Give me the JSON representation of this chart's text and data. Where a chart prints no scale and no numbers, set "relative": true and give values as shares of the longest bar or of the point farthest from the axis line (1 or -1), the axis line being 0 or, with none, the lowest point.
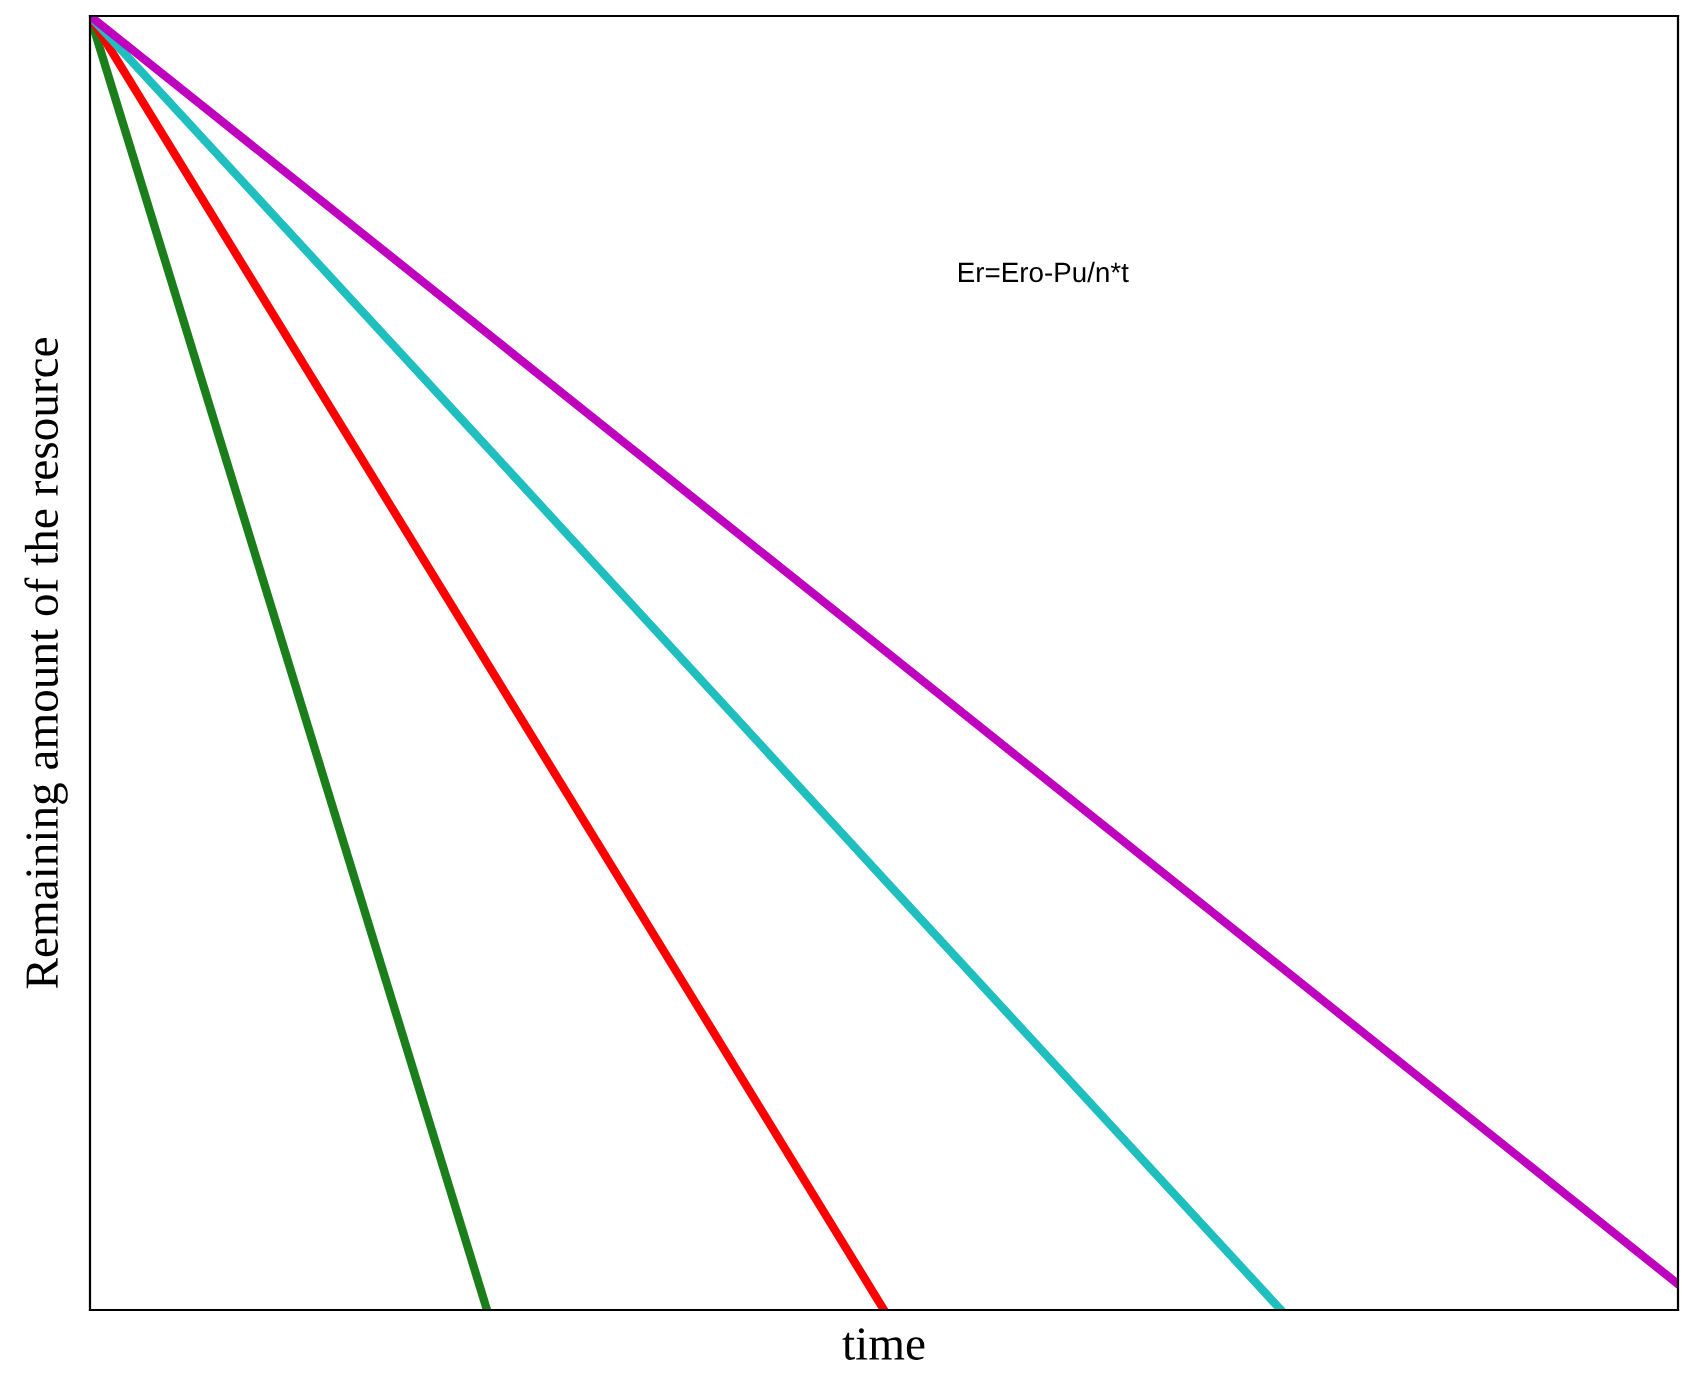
{
  "chart_data": {
    "type": "line",
    "relative": true,
    "xlabel": "time",
    "ylabel": "Remaining amount of the resource",
    "annotations": [
      "Er=Ero-Pu/n*t"
    ],
    "categories": [
      null,
      null,
      null,
      null,
      null
    ],
    "series": [
      {
        "color": "#1a7f1a",
        "values": [
          1,
          0,
          null,
          null,
          null
        ]
      },
      {
        "color": "#ff0000",
        "values": [
          1,
          0.5,
          0,
          null,
          null
        ]
      },
      {
        "color": "#1fbfbf",
        "values": [
          1,
          0.667,
          0.333,
          0,
          null
        ]
      },
      {
        "color": "#bf00bf",
        "values": [
          1,
          0.755,
          0.51,
          0.265,
          0.02
        ]
      }
    ],
    "grid": false,
    "legend": false,
    "marker": "none",
    "line_style": "solid",
    "tick_labels": false
  }
}
